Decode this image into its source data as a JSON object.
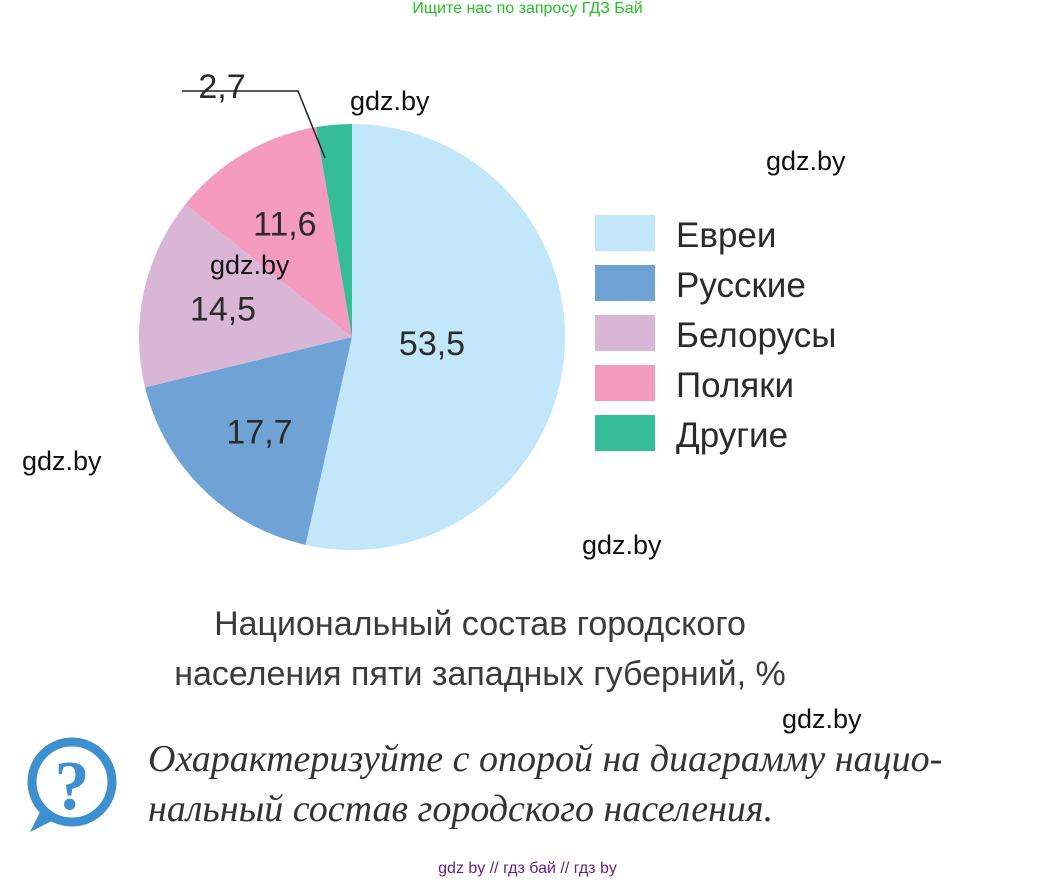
{
  "banner": "Ищите нас по запросу ГДЗ Бай",
  "watermarks": [
    "gdz.by",
    "gdz.by",
    "gdz.by",
    "gdz.by",
    "gdz.by",
    "gdz.by"
  ],
  "chart_data": {
    "type": "pie",
    "unit": "%",
    "title": "Национальный состав городского населения пяти западных губерний, %",
    "title_lines": [
      "Национальный состав городского",
      "населения пяти западных губерний, %"
    ],
    "legend_placement": "right",
    "categories": [
      "Евреи",
      "Русские",
      "Белорусы",
      "Поляки",
      "Другие"
    ],
    "values": [
      53.5,
      17.7,
      14.5,
      11.6,
      2.7
    ],
    "value_labels": [
      "53,5",
      "17,7",
      "14,5",
      "11,6",
      "2,7"
    ],
    "colors": [
      "#c2e6fa",
      "#6fa3d6",
      "#d9b5d6",
      "#f59bbf",
      "#35bd98"
    ]
  },
  "question": {
    "icon": "question-mark-icon",
    "lines": [
      "Охарактеризуйте с опорой на диаграмму нацио-",
      "нальный состав городского населения."
    ]
  },
  "footer": "gdz by  //  гдз бай  //  гдз by"
}
